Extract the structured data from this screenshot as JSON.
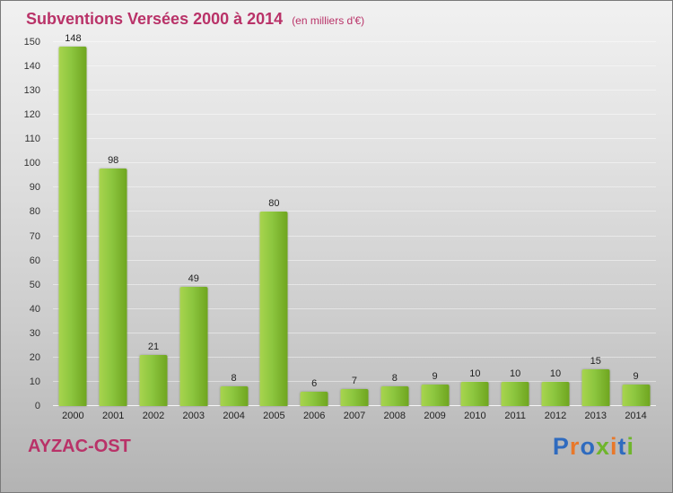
{
  "header": {
    "title": "Subventions Versées 2000 à 2014",
    "subtitle": "(en milliers d'€)"
  },
  "footer": {
    "name": "AYZAC-OST",
    "logo_letters": [
      {
        "ch": "P",
        "color": "#2f6bbf"
      },
      {
        "ch": "r",
        "color": "#e8782a"
      },
      {
        "ch": "o",
        "color": "#2f6bbf"
      },
      {
        "ch": "x",
        "color": "#6fb52c"
      },
      {
        "ch": "i",
        "color": "#e8782a"
      },
      {
        "ch": "t",
        "color": "#2f6bbf"
      },
      {
        "ch": "i",
        "color": "#6fb52c"
      }
    ]
  },
  "colors": {
    "title_pink": "#b93268",
    "bar_green_light": "#a8d44e",
    "bar_green_dark": "#6fa51f",
    "axis_text": "#333333"
  },
  "chart_data": {
    "type": "bar",
    "title": "Subventions Versées 2000 à 2014",
    "subtitle": "(en milliers d'€)",
    "categories": [
      "2000",
      "2001",
      "2002",
      "2003",
      "2004",
      "2005",
      "2006",
      "2007",
      "2008",
      "2009",
      "2010",
      "2011",
      "2012",
      "2013",
      "2014"
    ],
    "values": [
      148,
      98,
      21,
      49,
      8,
      80,
      6,
      7,
      8,
      9,
      10,
      10,
      10,
      15,
      9
    ],
    "xlabel": "",
    "ylabel": "",
    "ylim": [
      0,
      150
    ],
    "ytick_step": 10,
    "grid": true,
    "legend": "none"
  }
}
